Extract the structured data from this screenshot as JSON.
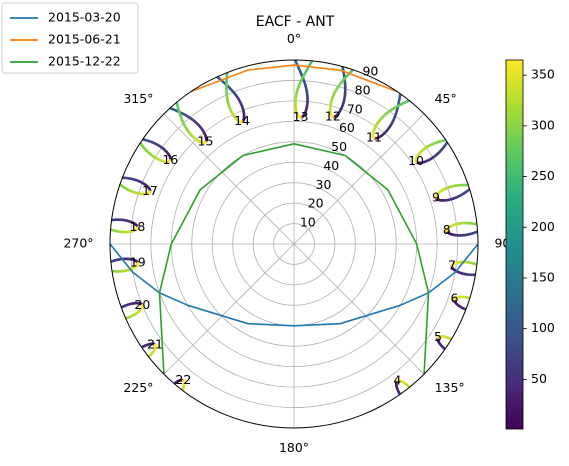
{
  "chart_data": {
    "type": "polar-line",
    "title": "EACF - ANT",
    "theta_labels": [
      {
        "deg": 0,
        "label": "0°"
      },
      {
        "deg": 45,
        "label": "45°"
      },
      {
        "deg": 90,
        "label": "90"
      },
      {
        "deg": 135,
        "label": "135°"
      },
      {
        "deg": 180,
        "label": "180°"
      },
      {
        "deg": 225,
        "label": "225°"
      },
      {
        "deg": 270,
        "label": "270°"
      },
      {
        "deg": 315,
        "label": "315°"
      }
    ],
    "r_labels": [
      "10",
      "20",
      "30",
      "40",
      "50",
      "60",
      "70",
      "80",
      "90"
    ],
    "r_axis": {
      "label_angle_deg": 22.5,
      "direction": "zenith angle (90 − elevation)"
    },
    "rlim": [
      0,
      90
    ],
    "grid": true,
    "series": [
      {
        "name": "2015-03-20",
        "color": "#1f77b4",
        "points": [
          [
            90,
            90
          ],
          [
            100,
            80
          ],
          [
            110,
            70
          ],
          [
            120,
            60
          ],
          [
            150,
            45
          ],
          [
            180,
            40
          ],
          [
            210,
            45
          ],
          [
            240,
            60
          ],
          [
            250,
            70
          ],
          [
            260,
            80
          ],
          [
            270,
            90
          ]
        ]
      },
      {
        "name": "2015-06-21",
        "color": "#ff7f0e",
        "points": [
          [
            326,
            90
          ],
          [
            345,
            88
          ],
          [
            0,
            87.5
          ],
          [
            15,
            88
          ],
          [
            34,
            90
          ]
        ]
      },
      {
        "name": "2015-12-22",
        "color": "#2ca02c",
        "points": [
          [
            225,
            90
          ],
          [
            250,
            70
          ],
          [
            270,
            60
          ],
          [
            300,
            53
          ],
          [
            330,
            50
          ],
          [
            0,
            49
          ],
          [
            30,
            50
          ],
          [
            60,
            53
          ],
          [
            90,
            60
          ],
          [
            110,
            70
          ],
          [
            135,
            90
          ]
        ]
      }
    ],
    "analemmas": [
      {
        "hour": "4",
        "label_deg": 143,
        "label_r": 84
      },
      {
        "hour": "5",
        "label_deg": 123,
        "label_r": 84
      },
      {
        "hour": "6",
        "label_deg": 109,
        "label_r": 83
      },
      {
        "hour": "7",
        "label_deg": 98,
        "label_r": 78
      },
      {
        "hour": "8",
        "label_deg": 85,
        "label_r": 75
      },
      {
        "hour": "9",
        "label_deg": 72,
        "label_r": 73
      },
      {
        "hour": "10",
        "label_deg": 56,
        "label_r": 72
      },
      {
        "hour": "11",
        "label_deg": 37,
        "label_r": 65
      },
      {
        "hour": "12",
        "label_deg": 17,
        "label_r": 65
      },
      {
        "hour": "13",
        "label_deg": 3,
        "label_r": 62
      },
      {
        "hour": "14",
        "label_deg": 337,
        "label_r": 65
      },
      {
        "hour": "15",
        "label_deg": 319,
        "label_r": 66
      },
      {
        "hour": "16",
        "label_deg": 304,
        "label_r": 73
      },
      {
        "hour": "17",
        "label_deg": 290,
        "label_r": 75
      },
      {
        "hour": "18",
        "label_deg": 276,
        "label_r": 77
      },
      {
        "hour": "19",
        "label_deg": 263,
        "label_r": 77
      },
      {
        "hour": "20",
        "label_deg": 248,
        "label_r": 80
      },
      {
        "hour": "21",
        "label_deg": 234,
        "label_r": 84
      },
      {
        "hour": "22",
        "label_deg": 219,
        "label_r": 86
      }
    ],
    "colorbar": {
      "colormap": "viridis",
      "range": [
        1,
        365
      ],
      "ticks": [
        50,
        100,
        150,
        200,
        250,
        300,
        350
      ]
    },
    "legend": {
      "placement": "upper-left (outside)"
    }
  }
}
